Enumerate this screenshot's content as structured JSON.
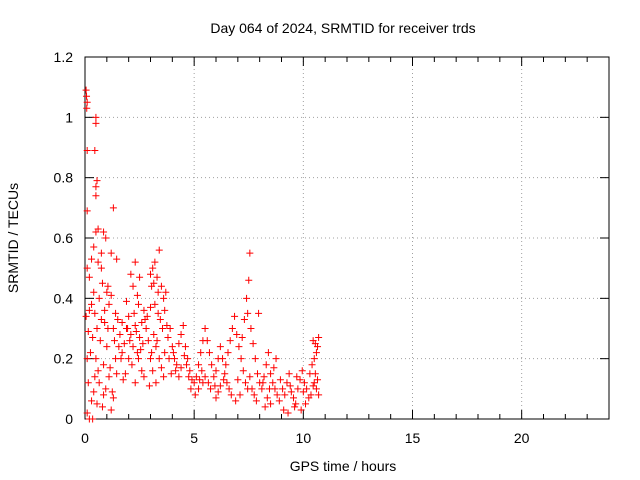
{
  "chart_data": {
    "type": "scatter",
    "title": "Day 064 of 2024, SRMTID for receiver trds",
    "xlabel": "GPS time / hours",
    "ylabel": "SRMTID / TECUs",
    "xlim": [
      0,
      24
    ],
    "ylim": [
      0,
      1.2
    ],
    "x_ticks": [
      0,
      5,
      10,
      15,
      20
    ],
    "x_tick_labels": [
      "0",
      "5",
      "10",
      "15",
      "20"
    ],
    "y_ticks": [
      0,
      0.2,
      0.4,
      0.6,
      0.8,
      1.0,
      1.2
    ],
    "y_tick_labels": [
      "0",
      "0.2",
      "0.4",
      "0.6",
      "0.8",
      "1",
      "1.2"
    ],
    "grid": true,
    "marker": "+",
    "color": "#ff0000",
    "series": [
      {
        "name": "SRMTID",
        "points": [
          [
            0.05,
            1.09
          ],
          [
            0.07,
            1.07
          ],
          [
            0.08,
            1.03
          ],
          [
            0.1,
            1.05
          ],
          [
            0.5,
            1.0
          ],
          [
            0.5,
            0.98
          ],
          [
            0.1,
            0.89
          ],
          [
            0.45,
            0.89
          ],
          [
            0.55,
            0.79
          ],
          [
            0.5,
            0.77
          ],
          [
            0.5,
            0.74
          ],
          [
            1.3,
            0.7
          ],
          [
            0.1,
            0.69
          ],
          [
            0.6,
            0.63
          ],
          [
            0.5,
            0.62
          ],
          [
            0.85,
            0.62
          ],
          [
            0.95,
            0.6
          ],
          [
            0.4,
            0.57
          ],
          [
            1.2,
            0.55
          ],
          [
            1.45,
            0.53
          ],
          [
            0.3,
            0.53
          ],
          [
            0.75,
            0.55
          ],
          [
            0.1,
            0.5
          ],
          [
            0.2,
            0.47
          ],
          [
            0.6,
            0.52
          ],
          [
            0.75,
            0.5
          ],
          [
            1.05,
            0.44
          ],
          [
            1.0,
            0.42
          ],
          [
            0.4,
            0.42
          ],
          [
            0.3,
            0.38
          ],
          [
            0.8,
            0.45
          ],
          [
            1.1,
            0.38
          ],
          [
            1.2,
            0.41
          ],
          [
            0.2,
            0.36
          ],
          [
            0.05,
            0.34
          ],
          [
            0.55,
            0.3
          ],
          [
            0.9,
            0.32
          ],
          [
            1.3,
            0.3
          ],
          [
            1.5,
            0.33
          ],
          [
            1.6,
            0.28
          ],
          [
            0.15,
            0.29
          ],
          [
            0.35,
            0.27
          ],
          [
            0.7,
            0.26
          ],
          [
            1.0,
            0.24
          ],
          [
            1.7,
            0.22
          ],
          [
            1.4,
            0.2
          ],
          [
            0.25,
            0.22
          ],
          [
            0.5,
            0.2
          ],
          [
            0.85,
            0.18
          ],
          [
            1.15,
            0.17
          ],
          [
            0.1,
            0.2
          ],
          [
            0.45,
            0.14
          ],
          [
            0.65,
            0.12
          ],
          [
            0.95,
            0.1
          ],
          [
            1.25,
            0.09
          ],
          [
            0.15,
            0.12
          ],
          [
            0.3,
            0.06
          ],
          [
            0.55,
            0.05
          ],
          [
            0.8,
            0.04
          ],
          [
            1.2,
            0.03
          ],
          [
            0.2,
            0.0
          ],
          [
            0.1,
            0.02
          ],
          [
            0.35,
            0.0
          ],
          [
            1.3,
            0.07
          ],
          [
            1.1,
            0.14
          ],
          [
            0.6,
            0.16
          ],
          [
            1.8,
            0.25
          ],
          [
            1.9,
            0.3
          ],
          [
            2.0,
            0.34
          ],
          [
            2.1,
            0.28
          ],
          [
            2.2,
            0.24
          ],
          [
            2.3,
            0.31
          ],
          [
            2.0,
            0.2
          ],
          [
            2.15,
            0.18
          ],
          [
            2.4,
            0.22
          ],
          [
            2.5,
            0.27
          ],
          [
            2.6,
            0.32
          ],
          [
            2.7,
            0.36
          ],
          [
            2.4,
            0.41
          ],
          [
            2.5,
            0.47
          ],
          [
            2.1,
            0.48
          ],
          [
            2.2,
            0.44
          ],
          [
            2.3,
            0.52
          ],
          [
            1.9,
            0.39
          ],
          [
            2.8,
            0.3
          ],
          [
            2.9,
            0.26
          ],
          [
            3.0,
            0.2
          ],
          [
            2.6,
            0.16
          ],
          [
            2.7,
            0.14
          ],
          [
            2.3,
            0.12
          ],
          [
            1.85,
            0.15
          ],
          [
            1.75,
            0.13
          ],
          [
            1.65,
            0.2
          ],
          [
            2.45,
            0.2
          ],
          [
            2.55,
            0.23
          ],
          [
            2.85,
            0.34
          ],
          [
            3.0,
            0.37
          ],
          [
            3.05,
            0.44
          ],
          [
            3.1,
            0.5
          ],
          [
            3.0,
            0.48
          ],
          [
            3.2,
            0.52
          ],
          [
            3.4,
            0.56
          ],
          [
            3.3,
            0.47
          ],
          [
            3.5,
            0.44
          ],
          [
            3.6,
            0.4
          ],
          [
            3.7,
            0.42
          ],
          [
            3.2,
            0.38
          ],
          [
            3.35,
            0.35
          ],
          [
            3.45,
            0.33
          ],
          [
            3.55,
            0.3
          ],
          [
            3.65,
            0.36
          ],
          [
            3.75,
            0.31
          ],
          [
            3.15,
            0.28
          ],
          [
            3.25,
            0.24
          ],
          [
            3.05,
            0.22
          ],
          [
            3.4,
            0.2
          ],
          [
            3.5,
            0.17
          ],
          [
            3.6,
            0.14
          ],
          [
            3.25,
            0.12
          ],
          [
            2.95,
            0.11
          ],
          [
            3.1,
            0.16
          ],
          [
            3.3,
            0.26
          ],
          [
            3.8,
            0.27
          ],
          [
            3.9,
            0.3
          ],
          [
            4.0,
            0.24
          ],
          [
            4.1,
            0.2
          ],
          [
            4.2,
            0.18
          ],
          [
            3.95,
            0.15
          ],
          [
            4.05,
            0.22
          ],
          [
            4.3,
            0.25
          ],
          [
            4.4,
            0.28
          ],
          [
            4.5,
            0.31
          ],
          [
            4.6,
            0.24
          ],
          [
            4.7,
            0.2
          ],
          [
            4.4,
            0.17
          ],
          [
            4.3,
            0.14
          ],
          [
            4.55,
            0.21
          ],
          [
            4.65,
            0.18
          ],
          [
            4.8,
            0.16
          ],
          [
            4.9,
            0.13
          ],
          [
            5.0,
            0.12
          ],
          [
            4.85,
            0.1
          ],
          [
            5.1,
            0.14
          ],
          [
            5.2,
            0.18
          ],
          [
            5.3,
            0.22
          ],
          [
            5.4,
            0.26
          ],
          [
            5.5,
            0.3
          ],
          [
            5.6,
            0.26
          ],
          [
            5.7,
            0.22
          ],
          [
            5.8,
            0.18
          ],
          [
            5.5,
            0.14
          ],
          [
            5.4,
            0.12
          ],
          [
            5.2,
            0.1
          ],
          [
            5.05,
            0.08
          ],
          [
            5.35,
            0.16
          ],
          [
            5.65,
            0.12
          ],
          [
            5.75,
            0.1
          ],
          [
            5.9,
            0.14
          ],
          [
            6.0,
            0.16
          ],
          [
            6.1,
            0.2
          ],
          [
            6.2,
            0.24
          ],
          [
            6.3,
            0.2
          ],
          [
            6.4,
            0.15
          ],
          [
            6.5,
            0.12
          ],
          [
            6.6,
            0.1
          ],
          [
            6.7,
            0.08
          ],
          [
            6.2,
            0.11
          ],
          [
            6.1,
            0.09
          ],
          [
            6.0,
            0.07
          ],
          [
            6.45,
            0.18
          ],
          [
            6.55,
            0.22
          ],
          [
            6.65,
            0.26
          ],
          [
            6.75,
            0.3
          ],
          [
            6.85,
            0.34
          ],
          [
            6.95,
            0.28
          ],
          [
            7.05,
            0.24
          ],
          [
            7.15,
            0.2
          ],
          [
            7.25,
            0.16
          ],
          [
            7.35,
            0.12
          ],
          [
            7.45,
            0.1
          ],
          [
            7.1,
            0.08
          ],
          [
            6.9,
            0.06
          ],
          [
            7.0,
            0.13
          ],
          [
            7.2,
            0.27
          ],
          [
            7.3,
            0.33
          ],
          [
            7.4,
            0.4
          ],
          [
            7.5,
            0.46
          ],
          [
            7.55,
            0.55
          ],
          [
            7.45,
            0.35
          ],
          [
            7.6,
            0.3
          ],
          [
            7.7,
            0.25
          ],
          [
            7.8,
            0.2
          ],
          [
            7.9,
            0.15
          ],
          [
            8.0,
            0.12
          ],
          [
            7.65,
            0.1
          ],
          [
            7.75,
            0.08
          ],
          [
            7.85,
            0.06
          ],
          [
            7.95,
            0.35
          ],
          [
            8.1,
            0.1
          ],
          [
            8.2,
            0.14
          ],
          [
            8.3,
            0.18
          ],
          [
            8.4,
            0.22
          ],
          [
            8.5,
            0.15
          ],
          [
            8.6,
            0.12
          ],
          [
            8.7,
            0.1
          ],
          [
            8.8,
            0.08
          ],
          [
            8.9,
            0.06
          ],
          [
            8.5,
            0.05
          ],
          [
            8.35,
            0.07
          ],
          [
            8.25,
            0.04
          ],
          [
            8.65,
            0.17
          ],
          [
            8.75,
            0.2
          ],
          [
            8.95,
            0.13
          ],
          [
            9.05,
            0.1
          ],
          [
            9.15,
            0.08
          ],
          [
            9.25,
            0.12
          ],
          [
            9.35,
            0.15
          ],
          [
            9.45,
            0.09
          ],
          [
            9.55,
            0.07
          ],
          [
            9.65,
            0.05
          ],
          [
            9.75,
            0.1
          ],
          [
            9.85,
            0.13
          ],
          [
            9.95,
            0.16
          ],
          [
            10.05,
            0.12
          ],
          [
            10.15,
            0.1
          ],
          [
            10.25,
            0.07
          ],
          [
            9.1,
            0.03
          ],
          [
            9.3,
            0.02
          ],
          [
            9.6,
            0.04
          ],
          [
            9.9,
            0.03
          ],
          [
            10.1,
            0.05
          ],
          [
            10.3,
            0.15
          ],
          [
            10.4,
            0.18
          ],
          [
            10.5,
            0.2
          ],
          [
            10.55,
            0.25
          ],
          [
            10.6,
            0.22
          ],
          [
            10.45,
            0.26
          ],
          [
            10.65,
            0.24
          ],
          [
            10.7,
            0.27
          ],
          [
            10.5,
            0.12
          ],
          [
            10.6,
            0.1
          ],
          [
            10.7,
            0.08
          ],
          [
            10.35,
            0.08
          ],
          [
            10.45,
            0.11
          ],
          [
            10.55,
            0.15
          ],
          [
            10.65,
            0.13
          ],
          [
            9.4,
            0.11
          ],
          [
            9.7,
            0.14
          ],
          [
            10.0,
            0.09
          ],
          [
            8.45,
            0.1
          ],
          [
            8.15,
            0.12
          ],
          [
            7.55,
            0.14
          ],
          [
            6.35,
            0.13
          ],
          [
            5.95,
            0.11
          ],
          [
            5.25,
            0.13
          ],
          [
            4.75,
            0.14
          ],
          [
            4.15,
            0.16
          ],
          [
            3.85,
            0.2
          ],
          [
            3.65,
            0.22
          ],
          [
            2.65,
            0.25
          ],
          [
            2.35,
            0.29
          ],
          [
            2.05,
            0.26
          ],
          [
            1.55,
            0.24
          ],
          [
            1.35,
            0.26
          ],
          [
            1.05,
            0.3
          ],
          [
            0.75,
            0.33
          ],
          [
            0.45,
            0.35
          ],
          [
            0.65,
            0.4
          ],
          [
            0.9,
            0.36
          ],
          [
            1.4,
            0.35
          ],
          [
            1.7,
            0.32
          ],
          [
            2.25,
            0.35
          ],
          [
            2.75,
            0.33
          ],
          [
            3.35,
            0.42
          ],
          [
            3.15,
            0.45
          ],
          [
            2.45,
            0.38
          ],
          [
            1.95,
            0.3
          ],
          [
            1.45,
            0.15
          ],
          [
            0.85,
            0.08
          ],
          [
            0.4,
            0.09
          ]
        ]
      }
    ]
  }
}
